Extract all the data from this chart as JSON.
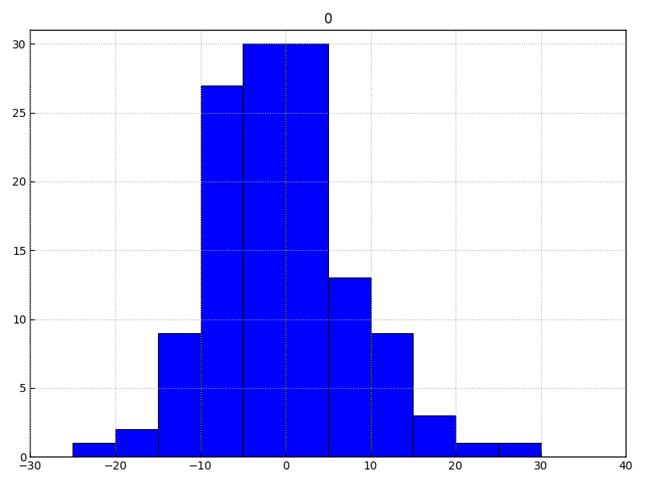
{
  "title": "0",
  "bar_color": "#0000ff",
  "edge_color": "#000000",
  "xlim": [
    -30,
    40
  ],
  "ylim": [
    0,
    31
  ],
  "xticks": [
    -30,
    -20,
    -10,
    0,
    10,
    20,
    30,
    40
  ],
  "yticks": [
    0,
    5,
    10,
    15,
    20,
    25,
    30
  ],
  "grid": true,
  "grid_style": "dotted",
  "bin_edges": [
    -25,
    -20,
    -15,
    -10,
    -5,
    0,
    5,
    10,
    15,
    20,
    25,
    30
  ],
  "counts": [
    1,
    2,
    9,
    27,
    30,
    30,
    13,
    9,
    3,
    1,
    1
  ],
  "figsize": [
    8.0,
    6.0
  ],
  "dpi": 100,
  "title_fontsize": 12,
  "font_family": "DejaVu Sans",
  "bg_color": "#ffffff"
}
